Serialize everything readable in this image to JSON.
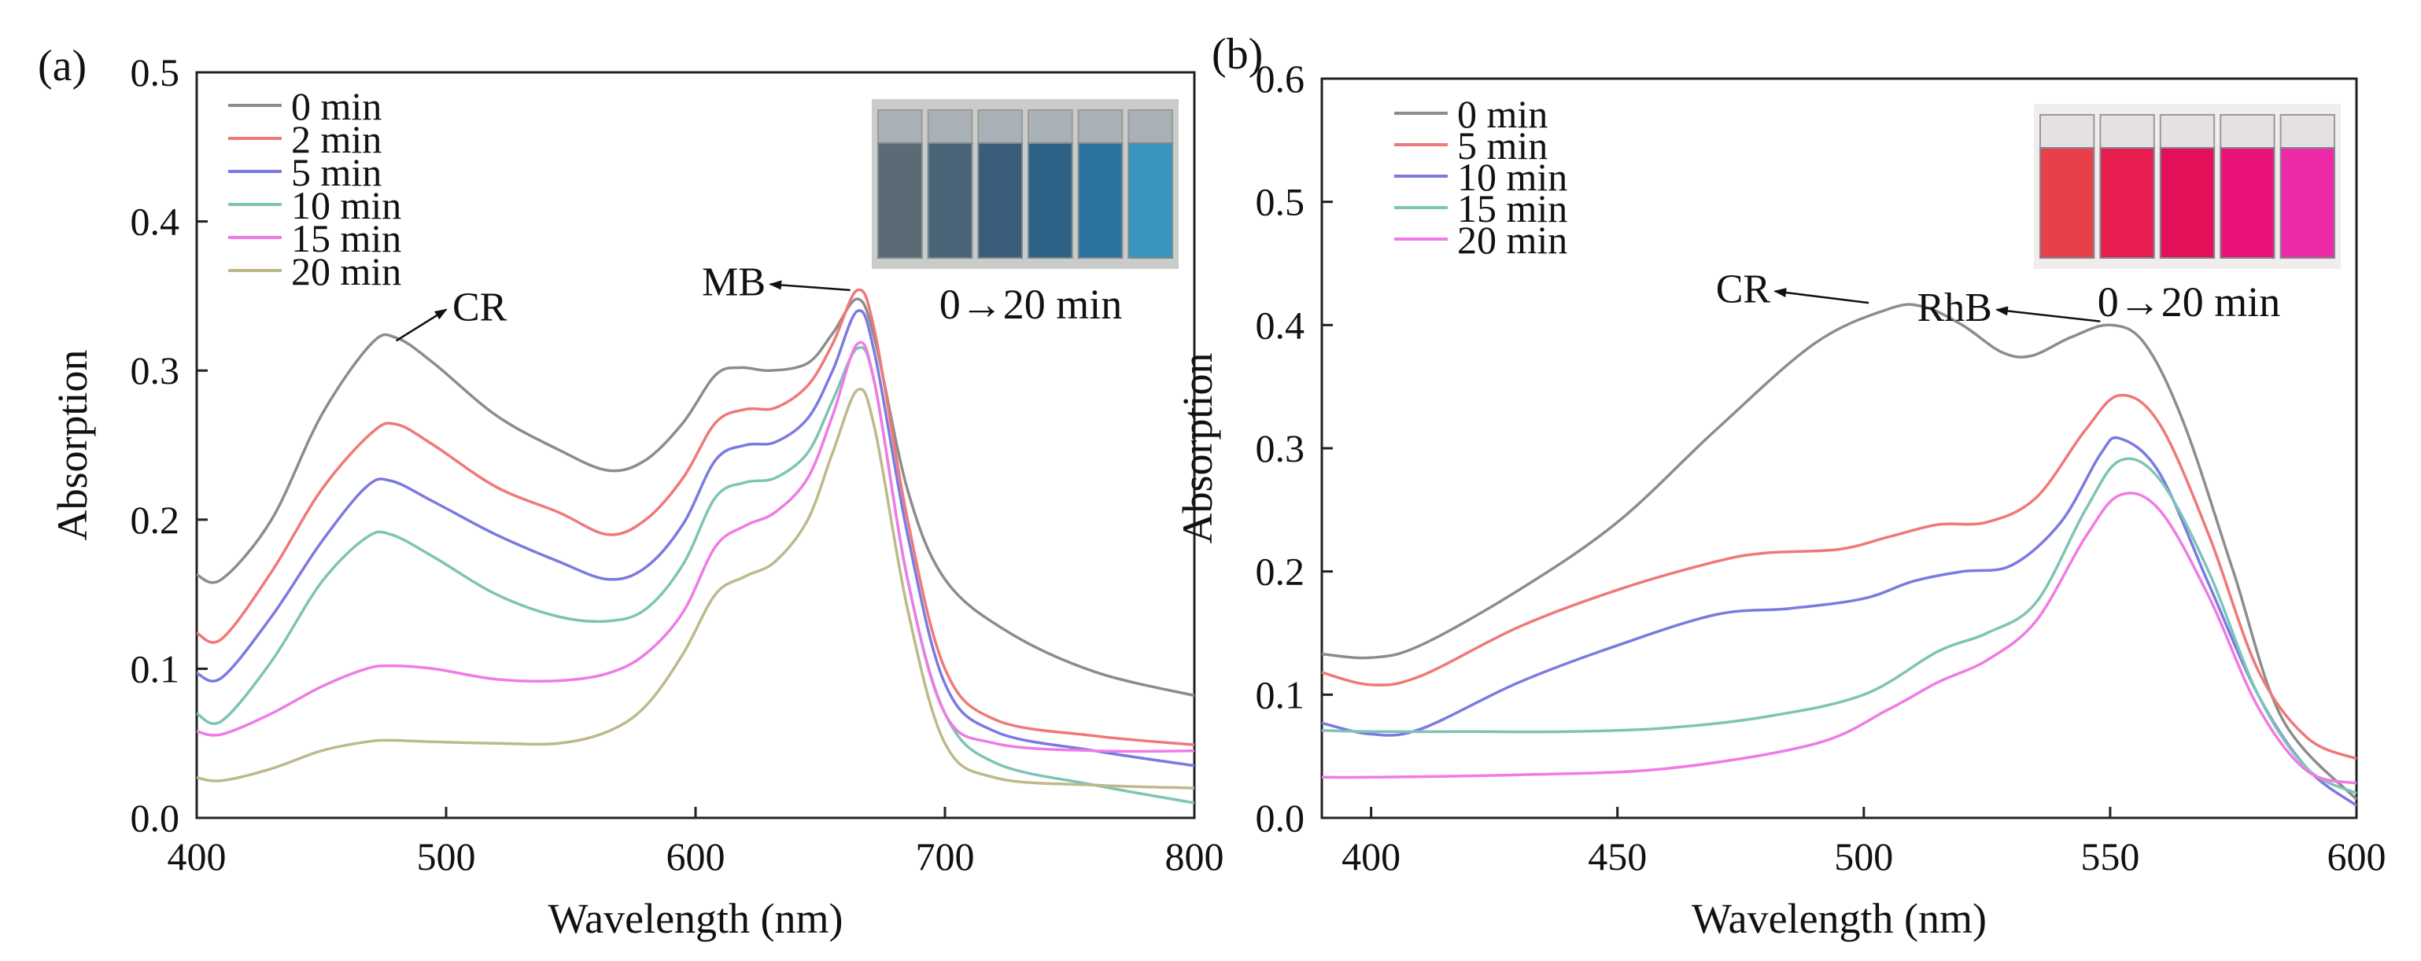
{
  "chart_data": [
    {
      "type": "line",
      "panel_label": "(a)",
      "xlabel": "Wavelength (nm)",
      "ylabel": "Absorption",
      "xlim": [
        400,
        800
      ],
      "ylim": [
        0,
        0.5
      ],
      "x_ticks": [
        400,
        500,
        600,
        700,
        800
      ],
      "y_ticks": [
        0.0,
        0.1,
        0.2,
        0.3,
        0.4,
        0.5
      ],
      "y_tick_labels": [
        "0.0",
        "0.1",
        "0.2",
        "0.3",
        "0.4",
        "0.5"
      ],
      "legend_position": "top-left",
      "annotations": [
        {
          "text": "CR",
          "x": 480,
          "y": 0.32,
          "label_x": 500,
          "label_y": 0.343
        },
        {
          "text": "MB",
          "x": 662,
          "y": 0.354,
          "label_x": 630,
          "label_y": 0.36
        }
      ],
      "inset": {
        "caption": "0→20 min",
        "vials": [
          "#5a6b75",
          "#4a6478",
          "#3a5d7c",
          "#2d6185",
          "#2a74a0",
          "#3a94c0"
        ]
      },
      "series": [
        {
          "name": "0 min",
          "color": "#8c8c8c",
          "points": [
            [
              400,
              0.163
            ],
            [
              410,
              0.16
            ],
            [
              430,
              0.2
            ],
            [
              450,
              0.27
            ],
            [
              470,
              0.318
            ],
            [
              480,
              0.322
            ],
            [
              495,
              0.305
            ],
            [
              520,
              0.27
            ],
            [
              545,
              0.247
            ],
            [
              565,
              0.233
            ],
            [
              580,
              0.24
            ],
            [
              595,
              0.265
            ],
            [
              608,
              0.297
            ],
            [
              618,
              0.302
            ],
            [
              630,
              0.3
            ],
            [
              645,
              0.305
            ],
            [
              655,
              0.325
            ],
            [
              665,
              0.348
            ],
            [
              672,
              0.32
            ],
            [
              685,
              0.22
            ],
            [
              700,
              0.16
            ],
            [
              725,
              0.125
            ],
            [
              760,
              0.098
            ],
            [
              800,
              0.082
            ]
          ]
        },
        {
          "name": "2 min",
          "color": "#f07878",
          "points": [
            [
              400,
              0.124
            ],
            [
              410,
              0.12
            ],
            [
              430,
              0.165
            ],
            [
              450,
              0.22
            ],
            [
              470,
              0.258
            ],
            [
              480,
              0.264
            ],
            [
              495,
              0.25
            ],
            [
              520,
              0.222
            ],
            [
              545,
              0.205
            ],
            [
              565,
              0.19
            ],
            [
              580,
              0.2
            ],
            [
              595,
              0.228
            ],
            [
              608,
              0.265
            ],
            [
              620,
              0.274
            ],
            [
              632,
              0.275
            ],
            [
              645,
              0.29
            ],
            [
              655,
              0.318
            ],
            [
              665,
              0.354
            ],
            [
              672,
              0.325
            ],
            [
              685,
              0.2
            ],
            [
              700,
              0.1
            ],
            [
              720,
              0.066
            ],
            [
              760,
              0.055
            ],
            [
              800,
              0.049
            ]
          ]
        },
        {
          "name": "5 min",
          "color": "#7a7ae0",
          "points": [
            [
              400,
              0.097
            ],
            [
              410,
              0.094
            ],
            [
              430,
              0.135
            ],
            [
              450,
              0.185
            ],
            [
              468,
              0.222
            ],
            [
              478,
              0.226
            ],
            [
              495,
              0.212
            ],
            [
              520,
              0.19
            ],
            [
              545,
              0.172
            ],
            [
              565,
              0.16
            ],
            [
              580,
              0.168
            ],
            [
              595,
              0.197
            ],
            [
              608,
              0.24
            ],
            [
              620,
              0.25
            ],
            [
              632,
              0.252
            ],
            [
              645,
              0.268
            ],
            [
              655,
              0.3
            ],
            [
              665,
              0.34
            ],
            [
              672,
              0.31
            ],
            [
              685,
              0.19
            ],
            [
              700,
              0.09
            ],
            [
              720,
              0.058
            ],
            [
              760,
              0.045
            ],
            [
              800,
              0.035
            ]
          ]
        },
        {
          "name": "10 min",
          "color": "#7ec4b6",
          "points": [
            [
              400,
              0.07
            ],
            [
              410,
              0.065
            ],
            [
              430,
              0.105
            ],
            [
              450,
              0.158
            ],
            [
              468,
              0.188
            ],
            [
              478,
              0.19
            ],
            [
              495,
              0.175
            ],
            [
              520,
              0.15
            ],
            [
              545,
              0.135
            ],
            [
              565,
              0.132
            ],
            [
              580,
              0.14
            ],
            [
              595,
              0.17
            ],
            [
              608,
              0.215
            ],
            [
              620,
              0.225
            ],
            [
              632,
              0.228
            ],
            [
              645,
              0.245
            ],
            [
              655,
              0.28
            ],
            [
              665,
              0.315
            ],
            [
              672,
              0.29
            ],
            [
              685,
              0.16
            ],
            [
              700,
              0.07
            ],
            [
              720,
              0.037
            ],
            [
              760,
              0.022
            ],
            [
              800,
              0.01
            ]
          ]
        },
        {
          "name": "15 min",
          "color": "#f07ae6",
          "points": [
            [
              400,
              0.058
            ],
            [
              410,
              0.056
            ],
            [
              430,
              0.07
            ],
            [
              450,
              0.088
            ],
            [
              468,
              0.1
            ],
            [
              478,
              0.102
            ],
            [
              495,
              0.1
            ],
            [
              520,
              0.093
            ],
            [
              545,
              0.092
            ],
            [
              565,
              0.097
            ],
            [
              580,
              0.11
            ],
            [
              595,
              0.138
            ],
            [
              608,
              0.182
            ],
            [
              620,
              0.196
            ],
            [
              632,
              0.205
            ],
            [
              645,
              0.228
            ],
            [
              655,
              0.27
            ],
            [
              665,
              0.318
            ],
            [
              672,
              0.29
            ],
            [
              685,
              0.16
            ],
            [
              700,
              0.07
            ],
            [
              720,
              0.05
            ],
            [
              760,
              0.045
            ],
            [
              800,
              0.045
            ]
          ]
        },
        {
          "name": "20 min",
          "color": "#bdb98a",
          "points": [
            [
              400,
              0.027
            ],
            [
              410,
              0.025
            ],
            [
              430,
              0.033
            ],
            [
              450,
              0.045
            ],
            [
              468,
              0.051
            ],
            [
              478,
              0.052
            ],
            [
              495,
              0.051
            ],
            [
              520,
              0.05
            ],
            [
              545,
              0.05
            ],
            [
              565,
              0.058
            ],
            [
              580,
              0.075
            ],
            [
              595,
              0.11
            ],
            [
              608,
              0.15
            ],
            [
              620,
              0.162
            ],
            [
              632,
              0.172
            ],
            [
              645,
              0.2
            ],
            [
              655,
              0.245
            ],
            [
              665,
              0.287
            ],
            [
              672,
              0.26
            ],
            [
              685,
              0.14
            ],
            [
              700,
              0.05
            ],
            [
              720,
              0.027
            ],
            [
              760,
              0.022
            ],
            [
              800,
              0.02
            ]
          ]
        }
      ]
    },
    {
      "type": "line",
      "panel_label": "(b)",
      "xlabel": "Wavelength (nm)",
      "ylabel": "Absorption",
      "xlim": [
        390,
        600
      ],
      "ylim": [
        0,
        0.6
      ],
      "x_ticks": [
        400,
        450,
        500,
        550,
        600
      ],
      "y_ticks": [
        0.0,
        0.1,
        0.2,
        0.3,
        0.4,
        0.5,
        0.6
      ],
      "y_tick_labels": [
        "0.0",
        "0.1",
        "0.2",
        "0.3",
        "0.4",
        "0.5",
        "0.6"
      ],
      "legend_position": "top-left",
      "annotations": [
        {
          "text": "CR",
          "x": 501,
          "y": 0.418,
          "label_x": 482,
          "label_y": 0.43
        },
        {
          "text": "RhB",
          "x": 548,
          "y": 0.403,
          "label_x": 527,
          "label_y": 0.415
        }
      ],
      "inset": {
        "caption": "0→20 min",
        "vials": [
          "#e8404a",
          "#e81e50",
          "#e4105a",
          "#ea1478",
          "#ee2aa8"
        ]
      },
      "series": [
        {
          "name": "0 min",
          "color": "#8c8c8c",
          "points": [
            [
              390,
              0.133
            ],
            [
              400,
              0.13
            ],
            [
              410,
              0.14
            ],
            [
              430,
              0.185
            ],
            [
              450,
              0.24
            ],
            [
              470,
              0.315
            ],
            [
              490,
              0.385
            ],
            [
              505,
              0.413
            ],
            [
              512,
              0.415
            ],
            [
              520,
              0.4
            ],
            [
              528,
              0.378
            ],
            [
              534,
              0.375
            ],
            [
              542,
              0.39
            ],
            [
              550,
              0.4
            ],
            [
              557,
              0.385
            ],
            [
              565,
              0.32
            ],
            [
              575,
              0.2
            ],
            [
              585,
              0.08
            ],
            [
              600,
              0.015
            ]
          ]
        },
        {
          "name": "5 min",
          "color": "#f07878",
          "points": [
            [
              390,
              0.118
            ],
            [
              400,
              0.108
            ],
            [
              410,
              0.115
            ],
            [
              430,
              0.155
            ],
            [
              450,
              0.185
            ],
            [
              470,
              0.208
            ],
            [
              480,
              0.215
            ],
            [
              495,
              0.218
            ],
            [
              505,
              0.228
            ],
            [
              515,
              0.238
            ],
            [
              525,
              0.24
            ],
            [
              535,
              0.26
            ],
            [
              545,
              0.315
            ],
            [
              552,
              0.343
            ],
            [
              560,
              0.32
            ],
            [
              570,
              0.23
            ],
            [
              580,
              0.12
            ],
            [
              590,
              0.065
            ],
            [
              600,
              0.048
            ]
          ]
        },
        {
          "name": "10 min",
          "color": "#7a7ae0",
          "points": [
            [
              390,
              0.077
            ],
            [
              400,
              0.068
            ],
            [
              410,
              0.072
            ],
            [
              430,
              0.11
            ],
            [
              450,
              0.14
            ],
            [
              470,
              0.165
            ],
            [
              485,
              0.17
            ],
            [
              500,
              0.178
            ],
            [
              510,
              0.192
            ],
            [
              520,
              0.2
            ],
            [
              530,
              0.205
            ],
            [
              540,
              0.24
            ],
            [
              548,
              0.295
            ],
            [
              552,
              0.308
            ],
            [
              560,
              0.28
            ],
            [
              570,
              0.19
            ],
            [
              580,
              0.1
            ],
            [
              590,
              0.04
            ],
            [
              600,
              0.01
            ]
          ]
        },
        {
          "name": "15 min",
          "color": "#7ec4b6",
          "points": [
            [
              390,
              0.071
            ],
            [
              400,
              0.07
            ],
            [
              420,
              0.07
            ],
            [
              440,
              0.07
            ],
            [
              460,
              0.073
            ],
            [
              480,
              0.082
            ],
            [
              500,
              0.1
            ],
            [
              515,
              0.135
            ],
            [
              525,
              0.15
            ],
            [
              535,
              0.175
            ],
            [
              545,
              0.25
            ],
            [
              552,
              0.29
            ],
            [
              560,
              0.275
            ],
            [
              570,
              0.2
            ],
            [
              580,
              0.1
            ],
            [
              590,
              0.04
            ],
            [
              600,
              0.02
            ]
          ]
        },
        {
          "name": "20 min",
          "color": "#f07ae6",
          "points": [
            [
              390,
              0.033
            ],
            [
              400,
              0.033
            ],
            [
              430,
              0.035
            ],
            [
              460,
              0.04
            ],
            [
              490,
              0.06
            ],
            [
              505,
              0.088
            ],
            [
              515,
              0.11
            ],
            [
              525,
              0.128
            ],
            [
              535,
              0.16
            ],
            [
              545,
              0.228
            ],
            [
              552,
              0.262
            ],
            [
              560,
              0.25
            ],
            [
              570,
              0.18
            ],
            [
              580,
              0.09
            ],
            [
              590,
              0.038
            ],
            [
              600,
              0.028
            ]
          ]
        }
      ]
    }
  ]
}
